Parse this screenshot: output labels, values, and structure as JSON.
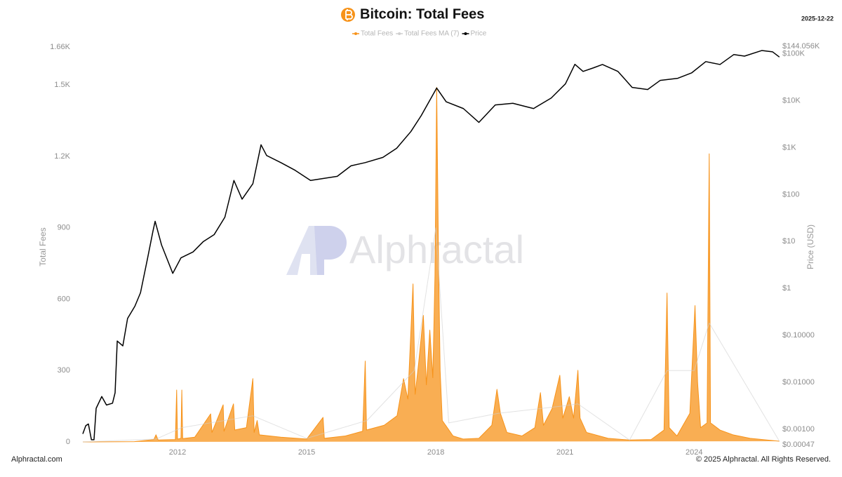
{
  "chart_data": {
    "type": "area-line",
    "title": "Bitcoin: Total Fees",
    "date": "2025-12-22",
    "watermark": "Alphractal",
    "footer_left": "Alphractal.com",
    "footer_right": "© 2025 Alphractal. All Rights Reserved.",
    "ylabel": "Total Fees",
    "y2label": "Price (USD)",
    "xlim": [
      2009.8,
      2026.0
    ],
    "xticks": [
      2012,
      2015,
      2018,
      2021,
      2024
    ],
    "ylim": [
      0,
      1660
    ],
    "yticks": [
      0,
      300,
      600,
      900,
      {
        "value": 1200,
        "label": "1.2K"
      },
      {
        "value": 1500,
        "label": "1.5K"
      },
      {
        "value": 1660,
        "label": "1.66K"
      }
    ],
    "y2lim": [
      0.00047,
      144056
    ],
    "y2scale": "log",
    "y2ticks": [
      {
        "value": 0.00047,
        "label": "$0.00047"
      },
      {
        "value": 0.001,
        "label": "$0.00100"
      },
      {
        "value": 0.01,
        "label": "$0.01000"
      },
      {
        "value": 0.1,
        "label": "$0.10000"
      },
      {
        "value": 1,
        "label": "$1"
      },
      {
        "value": 10,
        "label": "$10"
      },
      {
        "value": 100,
        "label": "$100"
      },
      {
        "value": 1000,
        "label": "$1K"
      },
      {
        "value": 10000,
        "label": "$10K"
      },
      {
        "value": 100000,
        "label": "$100K"
      },
      {
        "value": 144056,
        "label": "$144.056K"
      }
    ],
    "grid": false,
    "legend": "top",
    "series": [
      {
        "name": "Total Fees",
        "color": "#f7931a",
        "kind": "area",
        "x": [
          2009.8,
          2011.0,
          2011.45,
          2011.5,
          2011.55,
          2011.95,
          2011.98,
          2012.0,
          2012.08,
          2012.1,
          2012.12,
          2012.4,
          2012.77,
          2012.8,
          2013.06,
          2013.08,
          2013.3,
          2013.33,
          2013.6,
          2013.75,
          2013.78,
          2013.85,
          2013.9,
          2014.4,
          2015.0,
          2015.38,
          2015.41,
          2015.9,
          2016.3,
          2016.36,
          2016.39,
          2016.8,
          2017.1,
          2017.25,
          2017.35,
          2017.47,
          2017.52,
          2017.6,
          2017.71,
          2017.78,
          2017.86,
          2017.93,
          2017.98,
          2018.02,
          2018.06,
          2018.1,
          2018.15,
          2018.4,
          2018.64,
          2019.0,
          2019.3,
          2019.42,
          2019.5,
          2019.65,
          2020.0,
          2020.3,
          2020.43,
          2020.5,
          2020.7,
          2020.88,
          2020.95,
          2021.1,
          2021.2,
          2021.3,
          2021.35,
          2021.5,
          2022.0,
          2022.5,
          2023.0,
          2023.3,
          2023.37,
          2023.42,
          2023.6,
          2023.9,
          2024.02,
          2024.08,
          2024.15,
          2024.3,
          2024.35,
          2024.38,
          2024.6,
          2024.9,
          2025.3,
          2025.98
        ],
        "values": [
          0,
          1,
          10,
          30,
          8,
          10,
          218,
          12,
          15,
          218,
          14,
          20,
          118,
          40,
          156,
          45,
          160,
          50,
          60,
          266,
          40,
          90,
          30,
          20,
          12,
          103,
          15,
          25,
          45,
          340,
          50,
          70,
          110,
          266,
          180,
          664,
          200,
          330,
          532,
          240,
          470,
          270,
          700,
          1491,
          800,
          300,
          90,
          25,
          12,
          15,
          70,
          221,
          120,
          40,
          25,
          60,
          207,
          70,
          140,
          280,
          100,
          190,
          100,
          301,
          100,
          40,
          15,
          8,
          10,
          50,
          626,
          60,
          25,
          120,
          573,
          250,
          60,
          80,
          1211,
          80,
          50,
          30,
          15,
          3
        ]
      },
      {
        "name": "Total Fees  MA (7)",
        "color": "#cfcfcf",
        "kind": "line",
        "x": [
          2009.8,
          2011.5,
          2012.1,
          2013.75,
          2015.0,
          2016.4,
          2017.5,
          2018.0,
          2018.3,
          2019.45,
          2020.9,
          2021.3,
          2022.5,
          2023.37,
          2024.0,
          2024.35,
          2025.98
        ],
        "values": [
          0,
          12,
          60,
          110,
          15,
          90,
          300,
          900,
          80,
          120,
          150,
          160,
          8,
          300,
          300,
          500,
          3
        ]
      },
      {
        "name": "Price",
        "color": "#000000",
        "kind": "line",
        "axis": "y2",
        "x": [
          2009.8,
          2009.87,
          2009.93,
          2010.0,
          2010.06,
          2010.11,
          2010.24,
          2010.35,
          2010.49,
          2010.55,
          2010.6,
          2010.73,
          2010.84,
          2011.01,
          2011.14,
          2011.3,
          2011.43,
          2011.48,
          2011.63,
          2011.89,
          2012.08,
          2012.36,
          2012.6,
          2012.85,
          2013.1,
          2013.31,
          2013.5,
          2013.75,
          2013.94,
          2014.07,
          2014.4,
          2014.73,
          2015.09,
          2015.38,
          2015.71,
          2016.03,
          2016.36,
          2016.77,
          2017.09,
          2017.42,
          2017.66,
          2018.02,
          2018.24,
          2018.64,
          2019.0,
          2019.38,
          2019.79,
          2020.27,
          2020.68,
          2021.01,
          2021.23,
          2021.42,
          2021.66,
          2021.87,
          2022.23,
          2022.56,
          2022.92,
          2023.21,
          2023.62,
          2023.94,
          2024.27,
          2024.6,
          2024.92,
          2025.17,
          2025.57,
          2025.82,
          2025.98
        ],
        "values": [
          0.0008,
          0.0012,
          0.0013,
          0.0006,
          0.0006,
          0.0028,
          0.005,
          0.0033,
          0.0036,
          0.006,
          0.076,
          0.06,
          0.23,
          0.42,
          0.81,
          4.2,
          16.7,
          27,
          8.4,
          2.1,
          4.5,
          6,
          10,
          14,
          33,
          200,
          80,
          170,
          1150,
          680,
          480,
          330,
          200,
          220,
          245,
          410,
          480,
          620,
          970,
          2200,
          4800,
          18600,
          9500,
          6800,
          3450,
          8100,
          8800,
          6800,
          11400,
          22800,
          59500,
          42000,
          50000,
          59000,
          42000,
          19200,
          17300,
          27000,
          30000,
          39000,
          68000,
          59000,
          96000,
          89000,
          117000,
          110000,
          85000
        ]
      }
    ]
  }
}
